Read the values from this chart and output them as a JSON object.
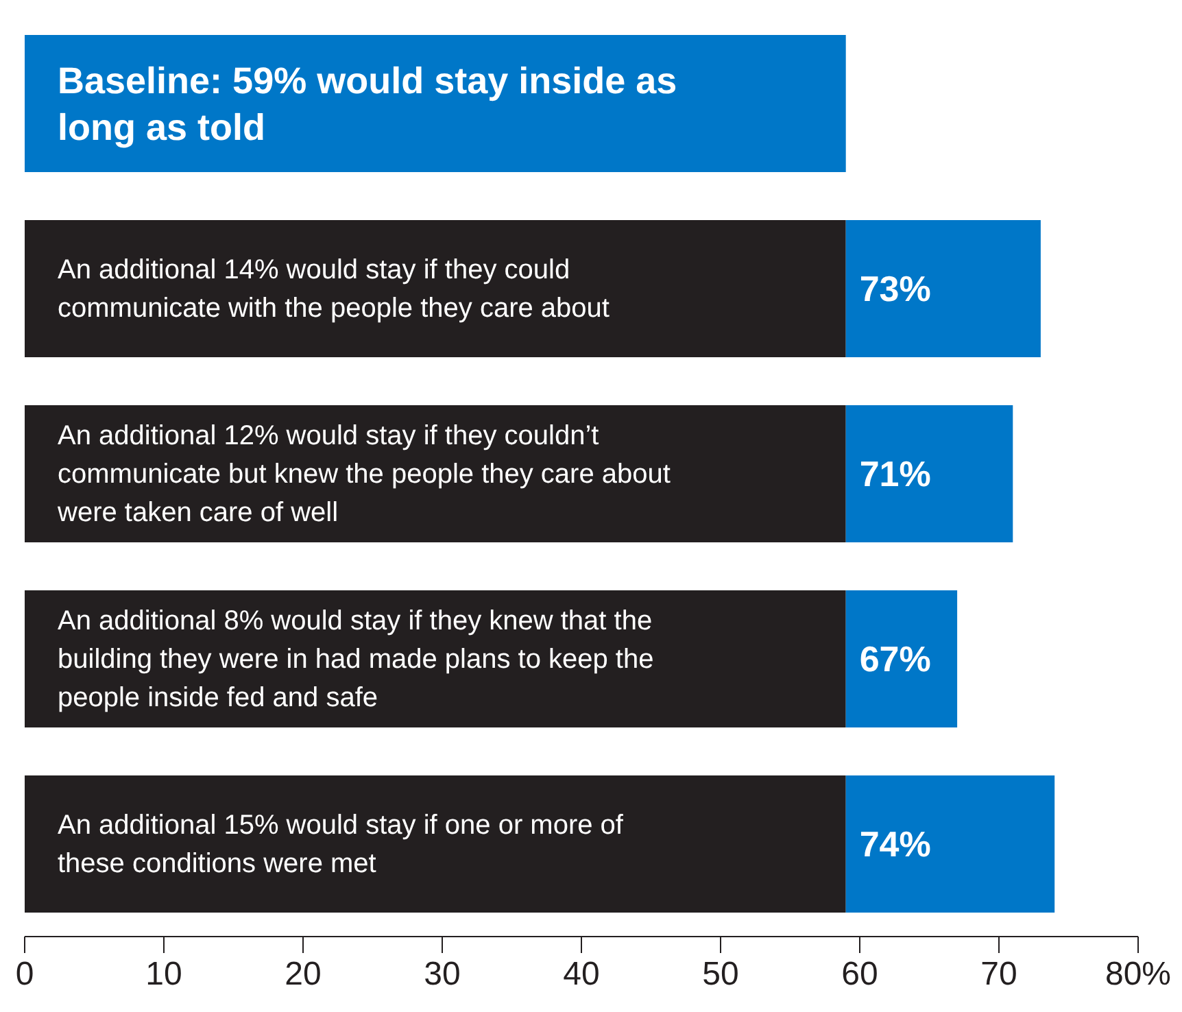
{
  "chart_data": {
    "type": "bar",
    "orientation": "horizontal",
    "stacked": true,
    "categories": [
      null,
      null,
      null,
      null,
      null
    ],
    "series": [
      {
        "color": "#231f20",
        "colors": [
          "#0077c8",
          "#231f20",
          "#231f20",
          "#231f20",
          "#231f20"
        ],
        "values": [
          59,
          59,
          59,
          59,
          59
        ]
      },
      {
        "color": "#0077c8",
        "values": [
          null,
          14,
          12,
          8,
          15
        ]
      }
    ],
    "totals": [
      null,
      "73%",
      "71%",
      "67%",
      "74%"
    ],
    "annotations": [
      "Baseline:  59% would stay inside as long as told",
      "An additional 14% would stay if they could communicate with the people they care about",
      "An additional 12% would stay if they couldn’t communicate but knew the people they care about were taken care of well",
      "An additional 8% would stay if they knew that the building they were in had made plans to keep the people inside fed and safe",
      "An additional 15% would stay if one or more of these conditions were met"
    ],
    "xlim": [
      0,
      80
    ],
    "xticks": [
      0,
      10,
      20,
      30,
      40,
      50,
      60,
      70,
      {
        "value": 80,
        "label": "80%"
      }
    ],
    "grid": false,
    "legend": false
  }
}
